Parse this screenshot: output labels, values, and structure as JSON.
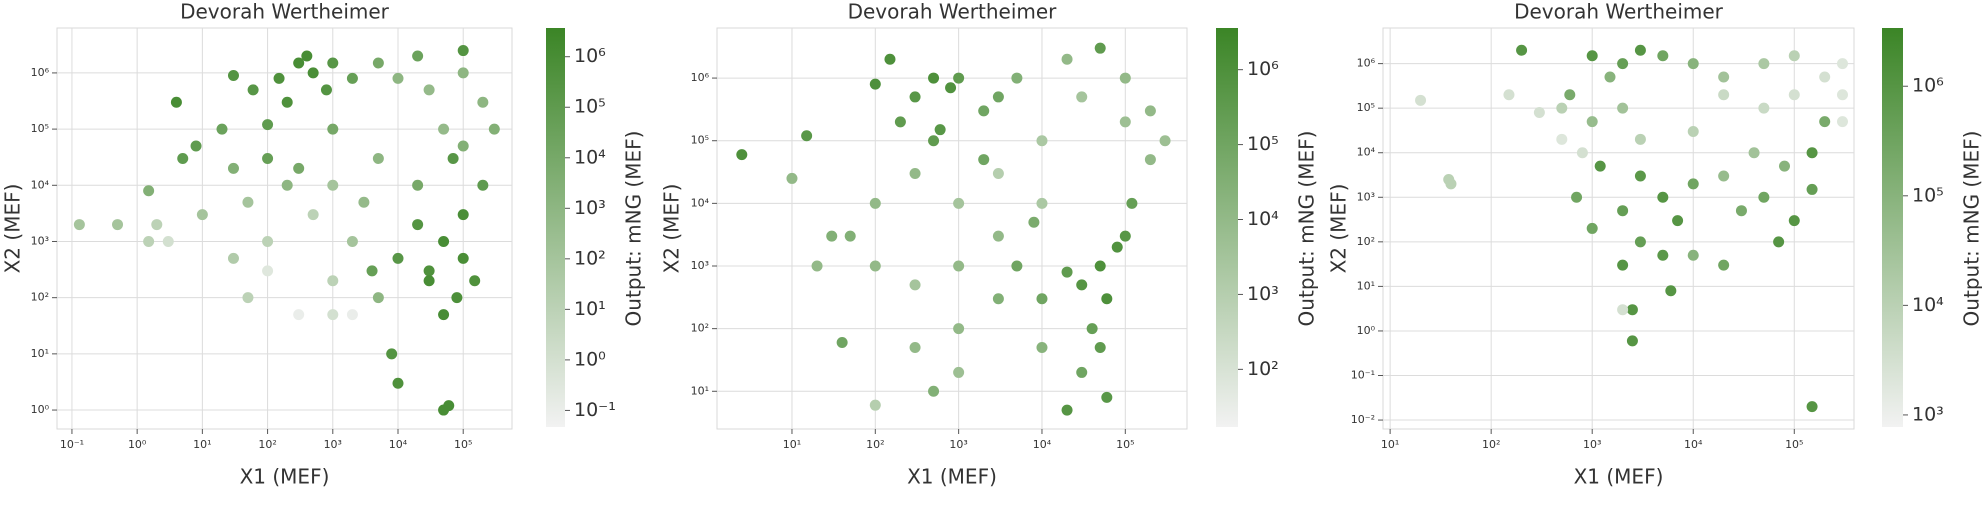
{
  "chart_data": [
    {
      "type": "scatter",
      "title": "Devorah Wertheimer",
      "xlabel": "X1 (MEF)",
      "ylabel": "X2 (MEF)",
      "colorbar_label": "Output: mNG (MEF)",
      "xscale": "log",
      "yscale": "log",
      "cscale": "log",
      "grid": true,
      "colormap": [
        "#f2f2f2",
        "#3b8526"
      ],
      "xlim": [
        0.059,
        560000
      ],
      "ylim": [
        0.46,
        6300000
      ],
      "clim": [
        0.047,
        3700000
      ],
      "xticks": [
        {
          "value": 0.1,
          "label": "10⁻¹"
        },
        {
          "value": 1,
          "label": "10⁰"
        },
        {
          "value": 10,
          "label": "10¹"
        },
        {
          "value": 100,
          "label": "10²"
        },
        {
          "value": 1000,
          "label": "10³"
        },
        {
          "value": 10000,
          "label": "10⁴"
        },
        {
          "value": 100000,
          "label": "10⁵"
        }
      ],
      "yticks": [
        {
          "value": 1,
          "label": "10⁰"
        },
        {
          "value": 10,
          "label": "10¹"
        },
        {
          "value": 100,
          "label": "10²"
        },
        {
          "value": 1000,
          "label": "10³"
        },
        {
          "value": 10000,
          "label": "10⁴"
        },
        {
          "value": 100000,
          "label": "10⁵"
        },
        {
          "value": 1000000,
          "label": "10⁶"
        }
      ],
      "cticks": [
        {
          "value": 0.1,
          "label": "10⁻¹"
        },
        {
          "value": 1,
          "label": "10⁰"
        },
        {
          "value": 10,
          "label": "10¹"
        },
        {
          "value": 100,
          "label": "10²"
        },
        {
          "value": 1000,
          "label": "10³"
        },
        {
          "value": 10000,
          "label": "10⁴"
        },
        {
          "value": 100000,
          "label": "10⁵"
        },
        {
          "value": 1000000,
          "label": "10⁶"
        }
      ],
      "x": [
        300.0,
        150.0,
        500.0,
        800.0,
        200.0,
        100.0,
        400.0,
        60.0,
        1000.0,
        2000.0,
        30.0,
        5000.0,
        10000.0,
        30000.0,
        100000.0,
        200000.0,
        50000.0,
        20000.0,
        100000.0,
        300000.0,
        50000.0,
        100000.0,
        30000.0,
        80000.0,
        20000.0,
        100000.0,
        50000.0,
        150000.0,
        10000.0,
        70000.0,
        200000.0,
        4000.0,
        60000.0,
        50000.0,
        10000.0,
        8000.0,
        2000.0,
        500.0,
        100.0,
        30.0,
        1000.0,
        50.0,
        200.0,
        1000.0,
        3000.0,
        30.0,
        10.0,
        2,
        1.5,
        0.13,
        0.5,
        4,
        5,
        1.5,
        3,
        8,
        20,
        100.0,
        300.0,
        2000.0,
        1000.0,
        50,
        5000.0,
        20000.0,
        5000.0,
        300.0,
        100.0,
        1000.0,
        100000.0,
        30000.0
      ],
      "values": [
        1500000.0,
        800000.0,
        1000000.0,
        500000.0,
        300000.0,
        120000.0,
        2000000.0,
        500000.0,
        1500000.0,
        800000.0,
        900000.0,
        1500000.0,
        800000.0,
        500000.0,
        1000000.0,
        300000.0,
        100000.0,
        2000000.0,
        2500000.0,
        100000.0,
        1000.0,
        500.0,
        300.0,
        100.0,
        2000.0,
        3000.0,
        50.0,
        200.0,
        500.0,
        30000.0,
        10000.0,
        300.0,
        1.2,
        1,
        3,
        10,
        1000.0,
        3000.0,
        1000.0,
        500.0,
        200.0,
        5000.0,
        10000.0,
        10000.0,
        5000.0,
        20000.0,
        3000.0,
        2000.0,
        1000.0,
        2000.0,
        2000.0,
        300000.0,
        30000.0,
        8000.0,
        1000.0,
        50000.0,
        100000.0,
        300.0,
        50,
        50,
        50.0,
        100.0,
        100.0,
        10000.0,
        30000.0,
        20000.0,
        30000.0,
        100000.0,
        50000.0,
        200.0
      ],
      "color_values": [
        1000000.0,
        500000.0,
        800000.0,
        300000.0,
        500000.0,
        100000.0,
        1000000.0,
        200000.0,
        200000.0,
        50000.0,
        300000.0,
        10000.0,
        1000.0,
        500.0,
        1000.0,
        1000.0,
        500.0,
        30000.0,
        300000.0,
        3000.0,
        1000000.0,
        800000.0,
        500000.0,
        600000.0,
        300000.0,
        800000.0,
        1000000.0,
        500000.0,
        200000.0,
        200000.0,
        100000.0,
        50000.0,
        1000000.0,
        1000000.0,
        500000.0,
        300000.0,
        100.0,
        10.0,
        10.0,
        30.0,
        10.0,
        100.0,
        1000.0,
        100.0,
        500.0,
        3000.0,
        100.0,
        10.0,
        10.0,
        100.0,
        100.0,
        1000000.0,
        100000.0,
        3000.0,
        1,
        100000.0,
        30000.0,
        0.3,
        0.1,
        0.1,
        1,
        10,
        1000.0,
        10000.0,
        1000.0,
        10000.0,
        50000.0,
        10000.0,
        3000.0,
        1000000.0
      ]
    },
    {
      "type": "scatter",
      "title": "Devorah Wertheimer",
      "xlabel": "X1 (MEF)",
      "ylabel": "X2 (MEF)",
      "colorbar_label": "Output: mNG (MEF)",
      "xscale": "log",
      "yscale": "log",
      "cscale": "log",
      "grid": true,
      "colormap": [
        "#f2f2f2",
        "#3b8526"
      ],
      "xlim": [
        1.26,
        550000
      ],
      "ylim": [
        2.5,
        6300000
      ],
      "clim": [
        17,
        3600000
      ],
      "xticks": [
        {
          "value": 10,
          "label": "10¹"
        },
        {
          "value": 100,
          "label": "10²"
        },
        {
          "value": 1000,
          "label": "10³"
        },
        {
          "value": 10000,
          "label": "10⁴"
        },
        {
          "value": 100000,
          "label": "10⁵"
        }
      ],
      "yticks": [
        {
          "value": 10,
          "label": "10¹"
        },
        {
          "value": 100,
          "label": "10²"
        },
        {
          "value": 1000,
          "label": "10³"
        },
        {
          "value": 10000,
          "label": "10⁴"
        },
        {
          "value": 100000,
          "label": "10⁵"
        },
        {
          "value": 1000000,
          "label": "10⁶"
        }
      ],
      "cticks": [
        {
          "value": 100,
          "label": "10²"
        },
        {
          "value": 1000,
          "label": "10³"
        },
        {
          "value": 10000,
          "label": "10⁴"
        },
        {
          "value": 100000,
          "label": "10⁵"
        },
        {
          "value": 1000000,
          "label": "10⁶"
        }
      ],
      "x": [
        500.0,
        800.0,
        300.0,
        1000.0,
        200.0,
        600.0,
        150.0,
        100.0,
        15.0,
        2.5,
        2000.0,
        5000.0,
        20000.0,
        50000.0,
        100000.0,
        100000.0,
        30000.0,
        200000.0,
        10000.0,
        50000.0,
        80000.0,
        30000.0,
        100000.0,
        60000.0,
        20000.0,
        120000.0,
        40000.0,
        50000.0,
        60000.0,
        20000.0,
        30000.0,
        10000.0,
        1000.0,
        3000.0,
        10000.0,
        300.0,
        100.0,
        30.0,
        100.0,
        300.0,
        1000.0,
        3000.0,
        1000.0,
        300.0,
        1000.0,
        500.0,
        100.0,
        20,
        40,
        10,
        50.0,
        3000.0,
        5000.0,
        10000.0,
        2000.0,
        500.0,
        3000.0,
        200000.0,
        300000.0,
        8000.0
      ],
      "values": [
        1000000.0,
        700000.0,
        500000.0,
        1000000.0,
        200000.0,
        150000.0,
        2000000.0,
        800000.0,
        120000.0,
        60000.0,
        300000.0,
        1000000.0,
        2000000.0,
        3000000.0,
        1000000.0,
        200000.0,
        500000.0,
        50000.0,
        100000.0,
        1000.0,
        2000.0,
        500.0,
        3000.0,
        300.0,
        800.0,
        10000.0,
        100.0,
        50,
        8,
        5,
        20,
        300.0,
        10000.0,
        30000.0,
        10000.0,
        30000.0,
        10000.0,
        3000.0,
        1000.0,
        500.0,
        1000.0,
        300.0,
        100.0,
        50,
        20,
        10,
        6,
        1000.0,
        60,
        25000.0,
        3000.0,
        3000.0,
        1000.0,
        50.0,
        50000.0,
        100000.0,
        500000.0,
        300000.0,
        100000.0,
        5000.0
      ],
      "color_values": [
        1000000.0,
        800000.0,
        500000.0,
        300000.0,
        300000.0,
        500000.0,
        1000000.0,
        1000000.0,
        500000.0,
        1000000.0,
        100000.0,
        30000.0,
        10000.0,
        300000.0,
        10000.0,
        5000.0,
        3000.0,
        10000.0,
        2000.0,
        1000000.0,
        800000.0,
        600000.0,
        500000.0,
        1000000.0,
        300000.0,
        200000.0,
        200000.0,
        300000.0,
        500000.0,
        600000.0,
        100000.0,
        100000.0,
        3000.0,
        1000.0,
        2000.0,
        10000.0,
        10000.0,
        30000.0,
        10000.0,
        3000.0,
        10000.0,
        30000.0,
        10000.0,
        10000.0,
        5000.0,
        30000.0,
        1000.0,
        10000.0,
        100000.0,
        10000.0,
        30000.0,
        10000.0,
        100000.0,
        20000.0,
        100000.0,
        300000.0,
        100000.0,
        10000.0,
        5000.0,
        50000.0
      ]
    },
    {
      "type": "scatter",
      "title": "Devorah Wertheimer",
      "xlabel": "X1 (MEF)",
      "ylabel": "X2 (MEF)",
      "colorbar_label": "Output: mNG (MEF)",
      "xscale": "log",
      "yscale": "log",
      "cscale": "log",
      "grid": true,
      "colormap": [
        "#f2f2f2",
        "#3b8526"
      ],
      "xlim": [
        8.5,
        390000
      ],
      "ylim": [
        0.0063,
        6300000
      ],
      "clim": [
        776,
        3400000
      ],
      "xticks": [
        {
          "value": 10,
          "label": "10¹"
        },
        {
          "value": 100,
          "label": "10²"
        },
        {
          "value": 1000,
          "label": "10³"
        },
        {
          "value": 10000,
          "label": "10⁴"
        },
        {
          "value": 100000,
          "label": "10⁵"
        }
      ],
      "yticks": [
        {
          "value": 0.01,
          "label": "10⁻²"
        },
        {
          "value": 0.1,
          "label": "10⁻¹"
        },
        {
          "value": 1,
          "label": "10⁰"
        },
        {
          "value": 10,
          "label": "10¹"
        },
        {
          "value": 100,
          "label": "10²"
        },
        {
          "value": 1000,
          "label": "10³"
        },
        {
          "value": 10000,
          "label": "10⁴"
        },
        {
          "value": 100000,
          "label": "10⁵"
        },
        {
          "value": 1000000,
          "label": "10⁶"
        }
      ],
      "cticks": [
        {
          "value": 1000,
          "label": "10³"
        },
        {
          "value": 10000,
          "label": "10⁴"
        },
        {
          "value": 100000,
          "label": "10⁵"
        },
        {
          "value": 1000000,
          "label": "10⁶"
        }
      ],
      "x": [
        1000.0,
        2000.0,
        1500.0,
        5000.0,
        10000.0,
        3000.0,
        20000.0,
        50000.0,
        100000.0,
        200000.0,
        300000.0,
        100000.0,
        50000.0,
        2000.0,
        1000.0,
        3000.0,
        10000.0,
        200000.0,
        150000.0,
        300000.0,
        1200.0,
        3000.0,
        5000.0,
        2000.0,
        10000.0,
        7000.0,
        3000.0,
        1000.0,
        5000.0,
        2000.0,
        50000.0,
        100000.0,
        30000.0,
        150000.0,
        70000.0,
        20000.0,
        40000.0,
        80000.0,
        10000.0,
        20000.0,
        6000.0,
        2500.0,
        2500.0,
        150000.0,
        2000.0,
        200,
        40,
        38,
        20,
        150,
        500,
        600,
        700,
        500,
        300,
        800,
        300000.0,
        20000.0
      ],
      "values": [
        1500000.0,
        1000000.0,
        500000.0,
        1500000.0,
        1000000.0,
        2000000.0,
        500000.0,
        1000000.0,
        1500000.0,
        500000.0,
        1000000.0,
        200000.0,
        100000.0,
        100000.0,
        50000.0,
        20000.0,
        30000.0,
        50000.0,
        10000.0,
        200000.0,
        5000.0,
        3000.0,
        1000.0,
        500.0,
        2000.0,
        300.0,
        100.0,
        200.0,
        50.0,
        30,
        1000.0,
        300.0,
        500.0,
        1500.0,
        100.0,
        3000.0,
        10000.0,
        5000.0,
        50,
        30,
        8,
        3,
        0.6,
        0.02,
        3,
        2000000.0,
        2000.0,
        2500.0,
        150000.0,
        200000.0,
        100000.0,
        200000.0,
        1000.0,
        20000.0,
        80000.0,
        10000.0,
        50000.0,
        200000.0
      ],
      "color_values": [
        1000000.0,
        500000.0,
        100000.0,
        300000.0,
        100000.0,
        1000000.0,
        30000.0,
        20000.0,
        10000.0,
        3000.0,
        2000.0,
        3000.0,
        5000.0,
        30000.0,
        50000.0,
        10000.0,
        10000.0,
        200000.0,
        1000000.0,
        2000.0,
        1000000.0,
        800000.0,
        1000000.0,
        500000.0,
        300000.0,
        1000000.0,
        500000.0,
        300000.0,
        800000.0,
        1000000.0,
        300000.0,
        1000000.0,
        200000.0,
        500000.0,
        1000000.0,
        50000.0,
        30000.0,
        100000.0,
        100000.0,
        300000.0,
        1000000.0,
        1000000.0,
        1000000.0,
        1000000.0,
        3000.0,
        1000000.0,
        10000.0,
        10000.0,
        3000.0,
        3000.0,
        10000.0,
        200000.0,
        300000.0,
        2000.0,
        3000.0,
        3000.0,
        2000.0,
        5000.0
      ]
    }
  ]
}
